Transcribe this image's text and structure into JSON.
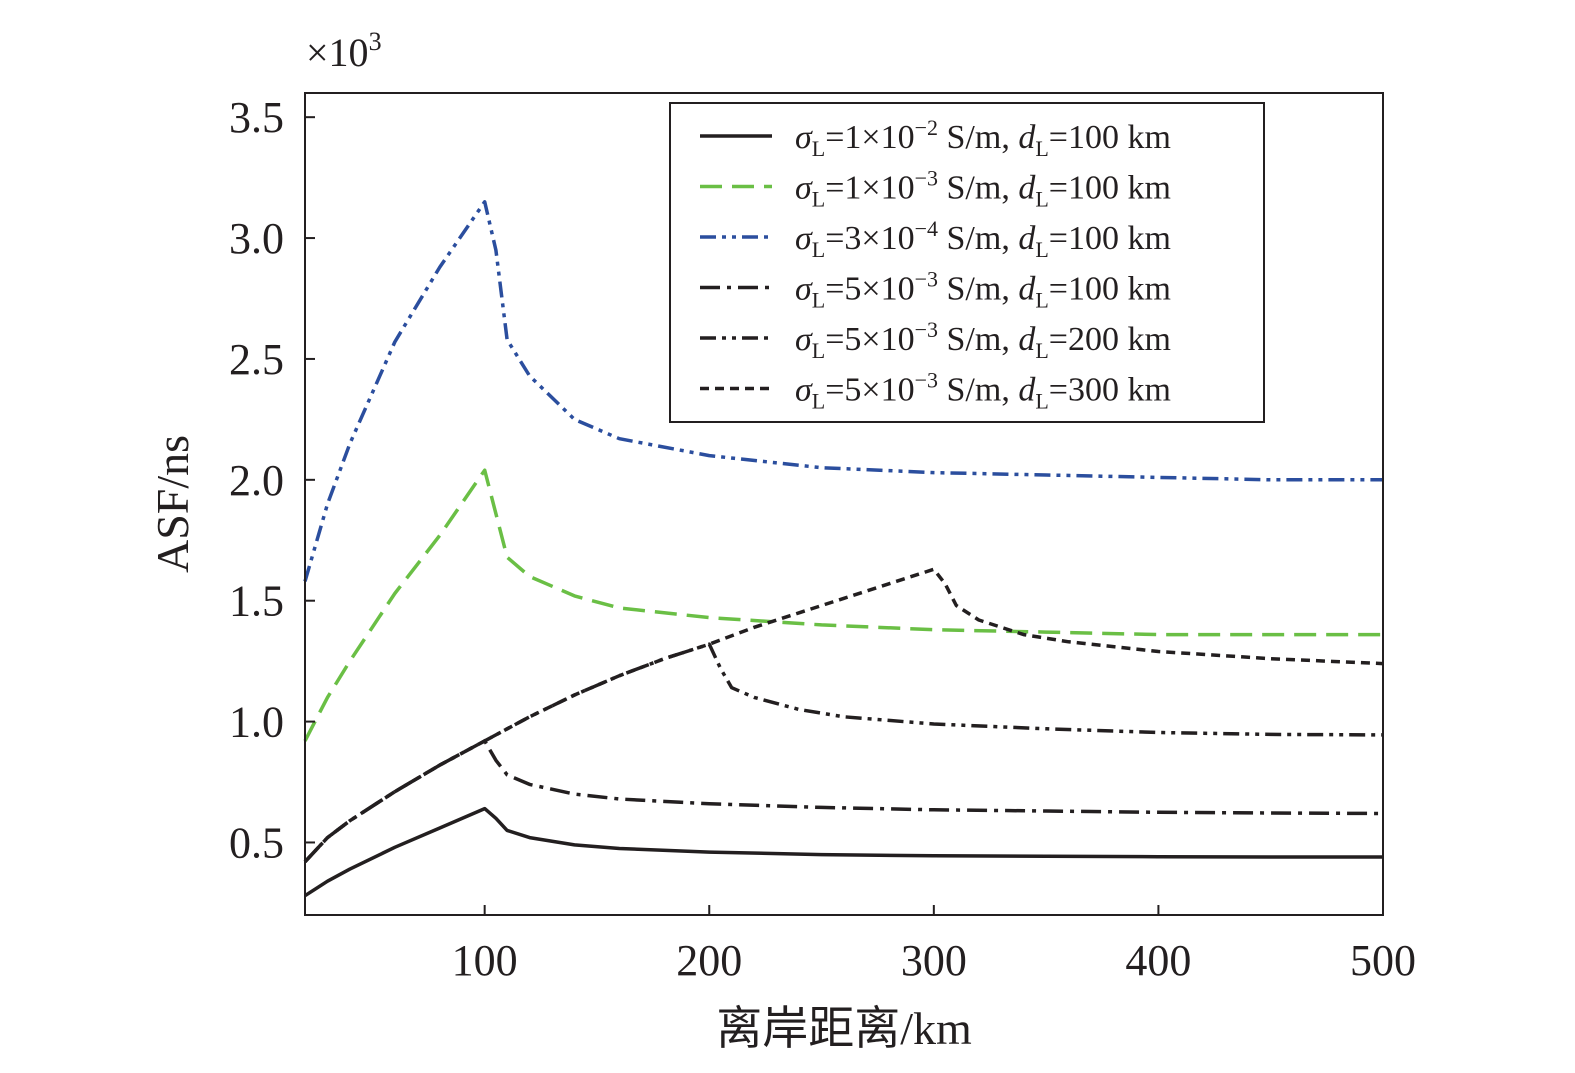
{
  "chart_data": {
    "type": "line",
    "title": "",
    "xlabel": "离岸距离/km",
    "ylabel": "ASF/ns",
    "y_multiplier_base": "×10",
    "y_multiplier_exp": "3",
    "xlim": [
      20,
      500
    ],
    "ylim": [
      0.2,
      3.6
    ],
    "xticks": [
      100,
      200,
      300,
      400,
      500
    ],
    "xtick_labels": [
      "100",
      "200",
      "300",
      "400",
      "500"
    ],
    "yticks": [
      0.5,
      1.0,
      1.5,
      2.0,
      2.5,
      3.0,
      3.5
    ],
    "ytick_labels": [
      "0.5",
      "1.0",
      "1.5",
      "2.0",
      "2.5",
      "3.0",
      "3.5"
    ],
    "grid": false,
    "legend_position": "top-right",
    "series": [
      {
        "legend_sigma": "σ",
        "legend_sub": "L",
        "legend_val": "=1×10",
        "legend_exp": "−2",
        "legend_units": " S/m, ",
        "legend_d": "d",
        "legend_d_sub": "L",
        "legend_dist": "=100 km",
        "color": "#231f20",
        "dash": "solid",
        "x": [
          20,
          30,
          40,
          60,
          80,
          100,
          105,
          110,
          120,
          140,
          160,
          200,
          250,
          300,
          350,
          400,
          450,
          500
        ],
        "y": [
          0.28,
          0.34,
          0.39,
          0.48,
          0.56,
          0.64,
          0.6,
          0.55,
          0.52,
          0.49,
          0.475,
          0.46,
          0.45,
          0.445,
          0.443,
          0.441,
          0.44,
          0.44
        ]
      },
      {
        "legend_sigma": "σ",
        "legend_sub": "L",
        "legend_val": "=1×10",
        "legend_exp": "−3",
        "legend_units": " S/m, ",
        "legend_d": "d",
        "legend_d_sub": "L",
        "legend_dist": "=100 km",
        "color": "#6abf45",
        "dash": "longdash",
        "x": [
          20,
          30,
          40,
          60,
          80,
          100,
          105,
          110,
          120,
          140,
          160,
          200,
          250,
          300,
          350,
          400,
          450,
          500
        ],
        "y": [
          0.92,
          1.1,
          1.25,
          1.53,
          1.77,
          2.04,
          1.86,
          1.68,
          1.6,
          1.52,
          1.47,
          1.43,
          1.4,
          1.38,
          1.37,
          1.36,
          1.36,
          1.36
        ]
      },
      {
        "legend_sigma": "σ",
        "legend_sub": "L",
        "legend_val": "=3×10",
        "legend_exp": "−4",
        "legend_units": " S/m, ",
        "legend_d": "d",
        "legend_d_sub": "L",
        "legend_dist": "=100 km",
        "color": "#2b4e9e",
        "dash": "dashdotdot",
        "x": [
          20,
          30,
          40,
          60,
          80,
          100,
          105,
          110,
          120,
          140,
          160,
          200,
          250,
          300,
          350,
          400,
          450,
          500
        ],
        "y": [
          1.58,
          1.9,
          2.15,
          2.57,
          2.88,
          3.15,
          2.95,
          2.58,
          2.43,
          2.25,
          2.17,
          2.1,
          2.05,
          2.03,
          2.02,
          2.01,
          2.0,
          2.0
        ]
      },
      {
        "legend_sigma": "σ",
        "legend_sub": "L",
        "legend_val": "=5×10",
        "legend_exp": "−3",
        "legend_units": " S/m, ",
        "legend_d": "d",
        "legend_d_sub": "L",
        "legend_dist": "=100 km",
        "color": "#231f20",
        "dash": "dashdot",
        "x": [
          20,
          30,
          40,
          60,
          80,
          100,
          105,
          110,
          120,
          140,
          160,
          200,
          250,
          300,
          350,
          400,
          450,
          500
        ],
        "y": [
          0.42,
          0.52,
          0.59,
          0.71,
          0.82,
          0.92,
          0.84,
          0.78,
          0.74,
          0.7,
          0.68,
          0.66,
          0.645,
          0.635,
          0.63,
          0.625,
          0.622,
          0.62
        ]
      },
      {
        "legend_sigma": "σ",
        "legend_sub": "L",
        "legend_val": "=5×10",
        "legend_exp": "−3",
        "legend_units": " S/m, ",
        "legend_d": "d",
        "legend_d_sub": "L",
        "legend_dist": "=200 km",
        "color": "#231f20",
        "dash": "dashdotdot",
        "x": [
          20,
          30,
          40,
          60,
          80,
          100,
          120,
          140,
          160,
          180,
          200,
          205,
          210,
          220,
          240,
          260,
          300,
          350,
          400,
          450,
          500
        ],
        "y": [
          0.42,
          0.52,
          0.59,
          0.71,
          0.82,
          0.92,
          1.02,
          1.11,
          1.19,
          1.26,
          1.32,
          1.22,
          1.14,
          1.1,
          1.05,
          1.02,
          0.99,
          0.97,
          0.955,
          0.947,
          0.945
        ]
      },
      {
        "legend_sigma": "σ",
        "legend_sub": "L",
        "legend_val": "=5×10",
        "legend_exp": "−3",
        "legend_units": " S/m, ",
        "legend_d": "d",
        "legend_d_sub": "L",
        "legend_dist": "=300 km",
        "color": "#231f20",
        "dash": "shortdash",
        "x": [
          20,
          30,
          40,
          60,
          80,
          100,
          120,
          140,
          160,
          180,
          200,
          220,
          240,
          260,
          280,
          300,
          305,
          310,
          320,
          340,
          360,
          400,
          450,
          500
        ],
        "y": [
          0.42,
          0.52,
          0.59,
          0.71,
          0.82,
          0.92,
          1.02,
          1.11,
          1.19,
          1.26,
          1.32,
          1.39,
          1.45,
          1.51,
          1.57,
          1.63,
          1.57,
          1.48,
          1.42,
          1.36,
          1.33,
          1.29,
          1.26,
          1.24
        ]
      }
    ]
  }
}
